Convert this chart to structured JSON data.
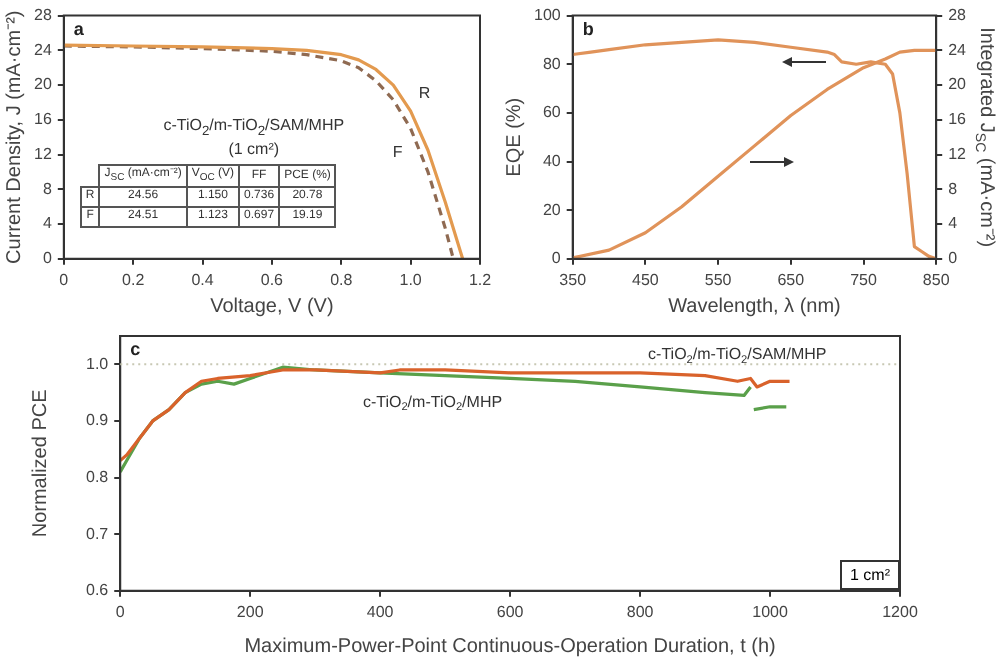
{
  "chart_data": [
    {
      "type": "line",
      "title": "a",
      "xlabel": "Voltage, V (V)",
      "ylabel": "Current Density, J (mA·cm⁻²)",
      "xlim": [
        0,
        1.2
      ],
      "xticks": [
        0,
        0.2,
        0.4,
        0.6,
        0.8,
        {
          "value": 1,
          "label": "1.0"
        },
        1.2
      ],
      "ylim": [
        0,
        28
      ],
      "yticks": [
        0,
        4,
        8,
        12,
        16,
        20,
        24,
        28
      ],
      "grid": false,
      "legend": false,
      "marker": "none",
      "x": [
        0,
        0.2,
        0.4,
        0.6,
        0.7,
        0.8,
        0.85,
        0.9,
        0.95,
        1.0,
        1.05,
        1.1,
        1.15
      ],
      "series": [
        {
          "name": "R",
          "color": "#e39a4f",
          "line_style": "solid",
          "values": [
            24.6,
            24.5,
            24.4,
            24.2,
            24.0,
            23.5,
            22.9,
            21.8,
            20.0,
            17.0,
            12.5,
            6.5,
            0
          ]
        },
        {
          "name": "F",
          "color": "#8f6a52",
          "line_style": "dashed",
          "x": [
            0,
            0.2,
            0.4,
            0.6,
            0.7,
            0.8,
            0.85,
            0.9,
            0.95,
            1.0,
            1.05,
            1.1,
            1.123
          ],
          "values": [
            24.5,
            24.4,
            24.2,
            23.9,
            23.5,
            22.8,
            22.0,
            20.5,
            18.3,
            15.0,
            10.0,
            3.5,
            0
          ]
        }
      ],
      "annotations": [
        "c-TiO$_{2}$/m-TiO$_{2}$/SAM/MHP",
        "(1 cm²)",
        "J$_{SC}$ (mA·cm⁻²)",
        "V$_{OC}$ (V)",
        "FF",
        "PCE (%)",
        "R",
        "24.56",
        "1.150",
        "0.736",
        "20.78",
        "F",
        "24.51",
        "1.123",
        "0.697",
        "19.19"
      ]
    },
    {
      "type": "line",
      "title": "b",
      "xlabel": "Wavelength, λ (nm)",
      "ylabel": "EQE (%)",
      "y2label": "Integrated J$_{SC}$ (mA·cm⁻²)",
      "xlim": [
        350,
        850
      ],
      "xticks": [
        350,
        450,
        550,
        650,
        750,
        850
      ],
      "ylim": [
        0,
        100
      ],
      "yticks": [
        0,
        20,
        40,
        60,
        80,
        100
      ],
      "y2lim": [
        0,
        28
      ],
      "y2ticks": [
        0,
        4,
        8,
        12,
        16,
        20,
        24,
        28
      ],
      "grid": false,
      "legend": false,
      "marker": "none",
      "series": [
        {
          "color": "#e0935a",
          "x": [
            350,
            375,
            400,
            450,
            500,
            550,
            600,
            650,
            700,
            710,
            720,
            740,
            760,
            780,
            790,
            800,
            810,
            820,
            830,
            840,
            850
          ],
          "values": [
            84,
            85,
            86,
            88,
            89,
            90,
            89,
            87,
            85,
            84,
            81,
            80,
            81,
            80,
            76,
            60,
            35,
            5,
            3,
            1,
            0
          ]
        },
        {
          "color": "#e0935a",
          "axis": "y2",
          "x": [
            350,
            400,
            450,
            500,
            550,
            600,
            650,
            700,
            750,
            780,
            800,
            820,
            850
          ],
          "values": [
            0.1,
            1,
            3,
            6,
            9.5,
            13,
            16.5,
            19.5,
            22,
            23,
            23.8,
            24,
            24
          ]
        }
      ]
    },
    {
      "type": "line",
      "title": "c",
      "xlabel": "Maximum-Power-Point Continuous-Operation Duration, t (h)",
      "ylabel": "Normalized PCE",
      "xlim": [
        0,
        1200
      ],
      "xticks": [
        0,
        200,
        400,
        600,
        800,
        1000,
        1200
      ],
      "ylim": [
        0.6,
        1.05
      ],
      "yticks": [
        0.6,
        0.7,
        0.8,
        0.9,
        {
          "value": 1,
          "label": "1.0"
        }
      ],
      "grid": false,
      "legend": false,
      "marker": "none",
      "ref_lines": [
        {
          "axis": "y",
          "value": 1,
          "color": "#c8c8b4",
          "line_style": "dotted"
        }
      ],
      "series": [
        {
          "name": "c-TiO$_{2}$/m-TiO$_{2}$/SAM/MHP",
          "color": "#d9622b",
          "x": [
            0,
            10,
            30,
            50,
            75,
            100,
            125,
            150,
            200,
            250,
            300,
            400,
            430,
            500,
            600,
            700,
            800,
            900,
            950,
            970,
            980,
            1000,
            1030
          ],
          "values": [
            0.83,
            0.84,
            0.87,
            0.9,
            0.92,
            0.95,
            0.97,
            0.975,
            0.98,
            0.99,
            0.99,
            0.985,
            0.99,
            0.99,
            0.985,
            0.985,
            0.985,
            0.98,
            0.97,
            0.975,
            0.96,
            0.97,
            0.97
          ]
        },
        {
          "name": "c-TiO$_{2}$/m-TiO$_{2}$/MHP",
          "color": "#5aa04a",
          "x": [
            0,
            10,
            30,
            50,
            75,
            100,
            125,
            150,
            175,
            200,
            250,
            300,
            400,
            500,
            600,
            700,
            800,
            900,
            960,
            970
          ],
          "values": [
            0.81,
            0.83,
            0.87,
            0.9,
            0.92,
            0.95,
            0.965,
            0.97,
            0.965,
            0.975,
            0.995,
            0.99,
            0.985,
            0.98,
            0.975,
            0.97,
            0.96,
            0.95,
            0.945,
            0.96
          ]
        },
        {
          "color": "#5aa04a",
          "x": [
            975,
            1000,
            1025
          ],
          "values": [
            0.92,
            0.925,
            0.925
          ]
        }
      ],
      "annotations": [
        "1 cm²"
      ]
    }
  ]
}
